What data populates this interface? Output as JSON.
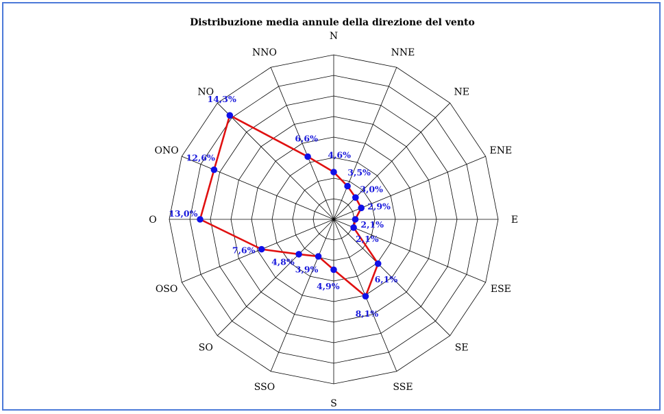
{
  "chart_data": {
    "type": "radar",
    "title": "Distribuzione media annule della direzione del vento",
    "categories": [
      "N",
      "NNE",
      "NE",
      "ENE",
      "E",
      "ESE",
      "SE",
      "SSE",
      "S",
      "SSO",
      "SO",
      "OSO",
      "O",
      "ONO",
      "NO",
      "NNO"
    ],
    "values": [
      4.6,
      3.5,
      3.0,
      2.9,
      2.1,
      2.1,
      6.1,
      8.1,
      4.9,
      3.9,
      4.8,
      7.6,
      13.0,
      12.6,
      14.3,
      6.6
    ],
    "value_labels": [
      "4,6%",
      "3,5%",
      "3,0%",
      "2,9%",
      "2,1%",
      "2,1%",
      "6,1%",
      "8,1%",
      "4,9%",
      "3,9%",
      "4,8%",
      "7,6%",
      "13,0%",
      "12,6%",
      "14,3%",
      "6,6%"
    ],
    "rmax": 16,
    "rings": 8,
    "grid": true,
    "line_color": "#e01010",
    "marker_color": "#1010e8",
    "grid_color": "#000000"
  }
}
